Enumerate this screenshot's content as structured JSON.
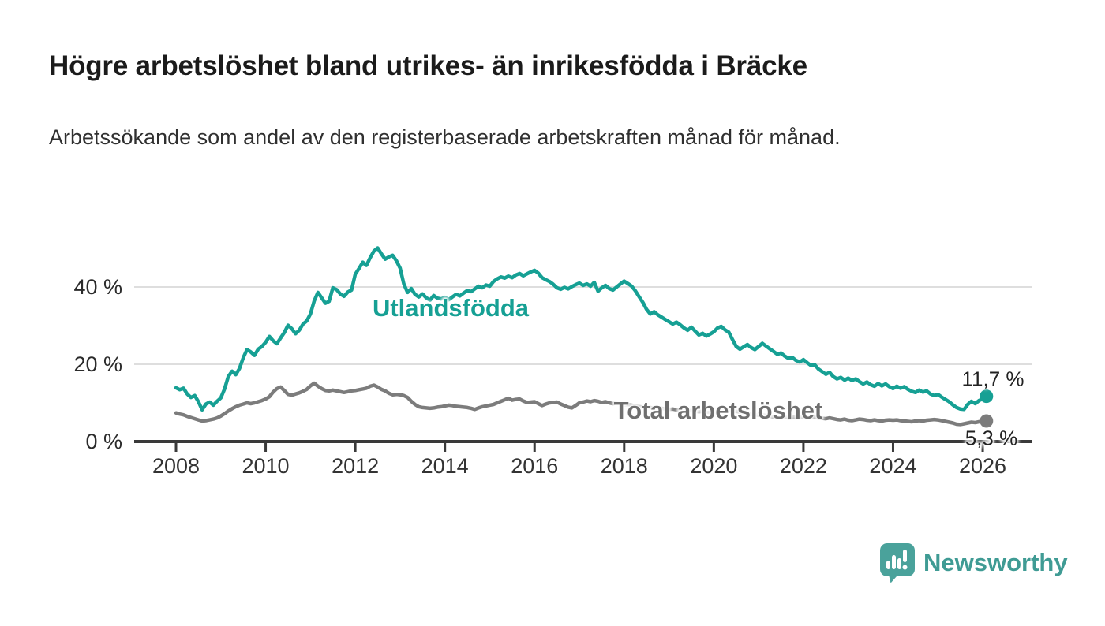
{
  "header": {
    "title": "Högre arbetslöshet bland utrikes- än inrikesfödda i Bräcke",
    "subtitle": "Arbetssökande som andel av den registerbaserade arbetskraften månad för månad."
  },
  "chart_data": {
    "type": "line",
    "title": "Högre arbetslöshet bland utrikes- än inrikesfödda i Bräcke",
    "subtitle": "Arbetssökande som andel av den registerbaserade arbetskraften månad för månad.",
    "unit": "%",
    "x_start_year": 2008,
    "x_points_per_year": 12,
    "x_end": "2026-02",
    "xticks": [
      2008,
      2010,
      2012,
      2014,
      2016,
      2018,
      2020,
      2022,
      2024,
      2026
    ],
    "yticks": [
      0,
      20,
      40
    ],
    "ytick_labels": [
      "0 %",
      "20 %",
      "40 %"
    ],
    "ylim": [
      0,
      52
    ],
    "xlim": [
      2007.1,
      2027.1
    ],
    "grid": "horizontal-only",
    "legend_position": "inline-labels",
    "series": [
      {
        "name": "Utlandsfödda",
        "color": "#16a094",
        "end_label": "11,7 %",
        "end_value": 11.7,
        "values": [
          13.9,
          13.4,
          13.8,
          12.3,
          11.4,
          11.9,
          10.3,
          8.2,
          9.7,
          10.2,
          9.4,
          10.4,
          11.3,
          13.6,
          16.8,
          18.2,
          17.3,
          18.9,
          21.7,
          23.8,
          23.2,
          22.3,
          23.9,
          24.6,
          25.7,
          27.2,
          26.1,
          25.3,
          26.8,
          28.2,
          30.1,
          29.2,
          27.9,
          28.8,
          30.4,
          31.2,
          33.0,
          36.4,
          38.6,
          37.2,
          35.8,
          36.3,
          39.8,
          39.3,
          38.2,
          37.6,
          38.7,
          39.2,
          43.3,
          44.8,
          46.4,
          45.6,
          47.6,
          49.3,
          50.1,
          48.6,
          47.2,
          47.8,
          48.2,
          46.8,
          44.9,
          40.8,
          38.6,
          39.6,
          38.1,
          37.4,
          38.2,
          37.2,
          36.6,
          37.8,
          37.1,
          36.9,
          37.3,
          36.7,
          37.4,
          38.1,
          37.7,
          38.4,
          39.1,
          38.8,
          39.5,
          40.2,
          39.8,
          40.5,
          40.2,
          41.4,
          42.1,
          42.6,
          42.3,
          42.8,
          42.4,
          43.1,
          43.5,
          42.9,
          43.4,
          43.9,
          44.3,
          43.6,
          42.4,
          41.9,
          41.4,
          40.7,
          39.8,
          39.4,
          39.9,
          39.5,
          40.1,
          40.6,
          41.0,
          40.4,
          40.8,
          40.2,
          41.2,
          38.9,
          39.8,
          40.4,
          39.6,
          39.2,
          40.0,
          40.8,
          41.5,
          40.9,
          40.2,
          39.0,
          37.5,
          36.0,
          34.2,
          33.0,
          33.6,
          32.8,
          32.2,
          31.6,
          31.0,
          30.4,
          30.9,
          30.2,
          29.4,
          28.8,
          29.6,
          28.6,
          27.6,
          28.0,
          27.3,
          27.8,
          28.4,
          29.4,
          29.8,
          28.9,
          28.3,
          26.4,
          24.6,
          23.9,
          24.5,
          25.1,
          24.3,
          23.8,
          24.6,
          25.4,
          24.7,
          24.0,
          23.3,
          22.6,
          22.9,
          22.1,
          21.5,
          21.8,
          21.0,
          20.6,
          21.2,
          20.4,
          19.7,
          19.9,
          18.8,
          18.1,
          17.4,
          17.9,
          16.8,
          16.2,
          16.6,
          15.9,
          16.4,
          15.8,
          16.2,
          15.5,
          14.9,
          15.4,
          14.7,
          14.3,
          15.0,
          14.4,
          14.9,
          14.2,
          13.7,
          14.3,
          13.8,
          14.2,
          13.5,
          13.0,
          12.7,
          13.3,
          12.8,
          13.1,
          12.3,
          11.9,
          12.2,
          11.5,
          10.9,
          10.3,
          9.5,
          8.8,
          8.4,
          8.3,
          9.6,
          10.4,
          9.8,
          10.6,
          11.0,
          11.7
        ]
      },
      {
        "name": "Total arbetslöshet",
        "color": "#7c7c7c",
        "end_label": "5,3 %",
        "end_value": 5.3,
        "values": [
          7.4,
          7.1,
          6.9,
          6.5,
          6.2,
          5.9,
          5.6,
          5.3,
          5.4,
          5.6,
          5.8,
          6.1,
          6.6,
          7.2,
          7.9,
          8.5,
          9.0,
          9.4,
          9.7,
          10.0,
          9.8,
          10.0,
          10.3,
          10.6,
          11.0,
          11.6,
          12.8,
          13.7,
          14.1,
          13.2,
          12.2,
          12.0,
          12.3,
          12.6,
          13.0,
          13.5,
          14.4,
          15.1,
          14.3,
          13.7,
          13.2,
          13.1,
          13.3,
          13.1,
          12.9,
          12.7,
          12.9,
          13.1,
          13.2,
          13.4,
          13.6,
          13.8,
          14.3,
          14.6,
          14.1,
          13.5,
          13.1,
          12.5,
          12.1,
          12.2,
          12.1,
          11.9,
          11.4,
          10.4,
          9.6,
          9.0,
          8.8,
          8.7,
          8.6,
          8.7,
          8.9,
          9.0,
          9.2,
          9.4,
          9.3,
          9.1,
          9.0,
          8.9,
          8.8,
          8.6,
          8.3,
          8.7,
          9.0,
          9.2,
          9.4,
          9.6,
          10.0,
          10.4,
          10.8,
          11.2,
          10.7,
          10.9,
          11.0,
          10.5,
          10.1,
          10.2,
          10.3,
          9.8,
          9.3,
          9.7,
          10.0,
          10.1,
          10.2,
          9.7,
          9.3,
          8.9,
          8.7,
          9.3,
          10.0,
          10.2,
          10.5,
          10.3,
          10.6,
          10.4,
          10.1,
          10.3,
          10.0,
          9.8,
          9.9,
          9.7,
          9.5,
          9.6,
          9.4,
          9.2,
          9.0,
          8.9,
          8.7,
          8.8,
          8.6,
          8.5,
          8.6,
          8.4,
          8.3,
          8.4,
          8.2,
          8.1,
          8.0,
          7.9,
          8.0,
          7.8,
          7.7,
          7.8,
          7.6,
          7.5,
          7.6,
          7.7,
          8.0,
          8.3,
          8.2,
          8.0,
          7.8,
          7.6,
          7.4,
          7.2,
          7.0,
          6.9,
          6.8,
          6.9,
          6.7,
          6.5,
          6.3,
          6.2,
          6.4,
          6.3,
          6.1,
          6.2,
          6.4,
          6.5,
          6.3,
          6.2,
          6.4,
          6.3,
          6.1,
          6.0,
          5.9,
          6.1,
          5.9,
          5.7,
          5.6,
          5.8,
          5.5,
          5.4,
          5.6,
          5.8,
          5.7,
          5.5,
          5.4,
          5.6,
          5.4,
          5.3,
          5.5,
          5.6,
          5.5,
          5.6,
          5.4,
          5.3,
          5.2,
          5.1,
          5.3,
          5.4,
          5.3,
          5.5,
          5.6,
          5.7,
          5.6,
          5.4,
          5.2,
          5.0,
          4.8,
          4.5,
          4.4,
          4.6,
          4.8,
          5.0,
          4.9,
          5.1,
          5.4,
          5.3
        ]
      }
    ]
  },
  "footer": {
    "brand": "Newsworthy"
  }
}
